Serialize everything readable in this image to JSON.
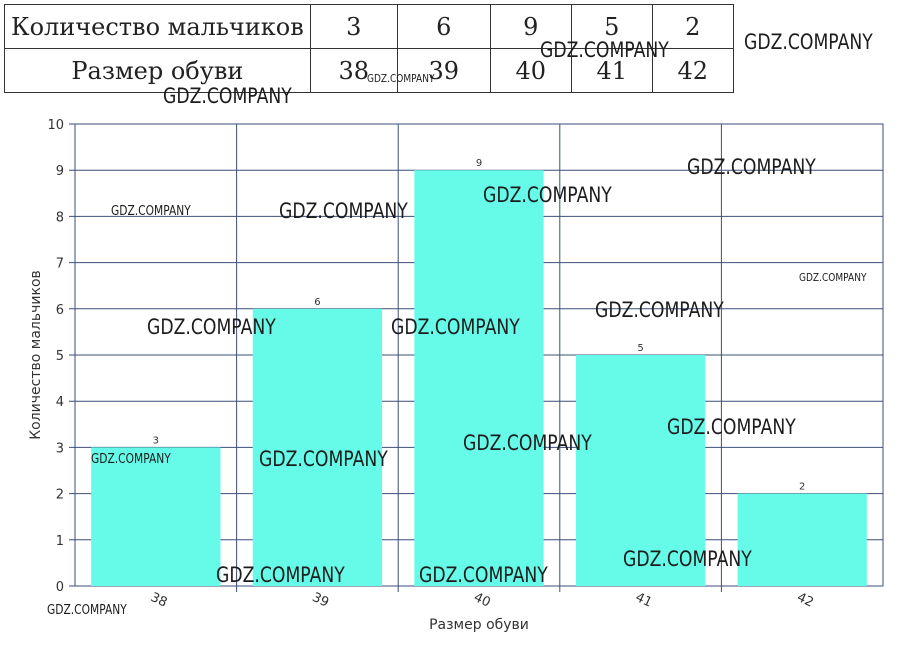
{
  "table": {
    "row1_label": "Количество мальчиков",
    "row1_values": [
      "3",
      "6",
      "9",
      "5",
      "2"
    ],
    "row2_label": "Размер обуви",
    "row2_values": [
      "38",
      "39",
      "40",
      "41",
      "42"
    ]
  },
  "watermark": "GDZ.COMPANY",
  "colors": {
    "bar": "#66fbe8",
    "grid": "#3b4f78",
    "text": "#333333"
  },
  "chart_data": {
    "type": "bar",
    "categories": [
      "38",
      "39",
      "40",
      "41",
      "42"
    ],
    "values": [
      3,
      6,
      9,
      5,
      2
    ],
    "data_labels": [
      "3",
      "6",
      "9",
      "5",
      "2"
    ],
    "title": "",
    "xlabel": "Размер обуви",
    "ylabel": "Количество мальчиков",
    "ylim": [
      0,
      10
    ],
    "yticks": [
      "0",
      "1",
      "2",
      "3",
      "4",
      "5",
      "6",
      "7",
      "8",
      "9",
      "10"
    ],
    "grid": true,
    "legend": "none"
  }
}
